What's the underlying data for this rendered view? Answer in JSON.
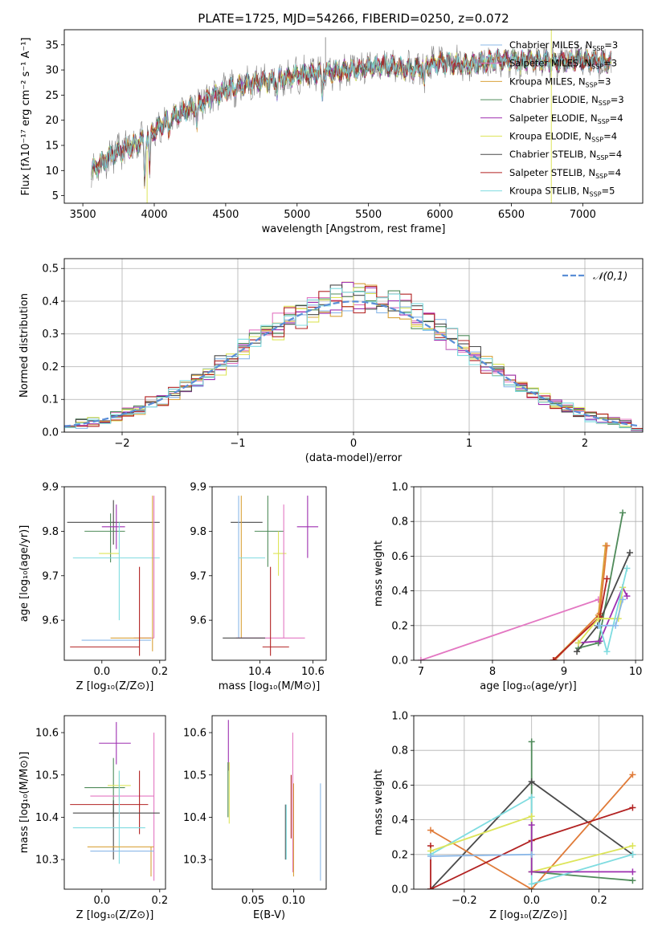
{
  "chart_data": [
    {
      "type": "line",
      "title": "PLATE=1725, MJD=54266, FIBERID=0250, z=0.072",
      "xlabel": "wavelength [Angstrom, rest frame]",
      "ylabel": "Flux [fλ10⁻¹⁷ erg cm⁻² s⁻¹ A⁻¹]",
      "xlim": [
        3370,
        7420
      ],
      "ylim": [
        3.5,
        38
      ],
      "xticks": [
        "3500",
        "4000",
        "4500",
        "5000",
        "5500",
        "6000",
        "6500",
        "7000"
      ],
      "yticks": [
        "5",
        "10",
        "15",
        "20",
        "25",
        "30",
        "35"
      ],
      "spectrum_anchors": {
        "x": [
          3560,
          3700,
          3850,
          3950,
          4050,
          4150,
          4300,
          4500,
          4700,
          4860,
          5000,
          5200,
          5400,
          5600,
          5800,
          6000,
          6200,
          6400,
          6600,
          6800,
          7000,
          7200
        ],
        "y": [
          10,
          13,
          15,
          16.5,
          19,
          21,
          23,
          26,
          27.5,
          28,
          29,
          29.5,
          30,
          31,
          30,
          31.5,
          31,
          32,
          32,
          31.5,
          32,
          31.5
        ]
      },
      "legend": {
        "position": "upper right",
        "items": [
          {
            "label": "Chabrier MILES, N",
            "sub": "SSP",
            "tail": "=3",
            "color": "#8bb8e8"
          },
          {
            "label": "Salpeter MILES, N",
            "sub": "SSP",
            "tail": "=3",
            "color": "#e377c2"
          },
          {
            "label": "Kroupa MILES, N",
            "sub": "SSP",
            "tail": "=3",
            "color": "#d9a33b"
          },
          {
            "label": "Chabrier ELODIE, N",
            "sub": "SSP",
            "tail": "=3",
            "color": "#4f8b5a"
          },
          {
            "label": "Salpeter ELODIE, N",
            "sub": "SSP",
            "tail": "=4",
            "color": "#9d2fb0"
          },
          {
            "label": "Kroupa ELODIE, N",
            "sub": "SSP",
            "tail": "=4",
            "color": "#dde55a"
          },
          {
            "label": "Chabrier STELIB, N",
            "sub": "SSP",
            "tail": "=4",
            "color": "#4a4a4a"
          },
          {
            "label": "Salpeter STELIB, N",
            "sub": "SSP",
            "tail": "=4",
            "color": "#b22222"
          },
          {
            "label": "Kroupa STELIB, N",
            "sub": "SSP",
            "tail": "=5",
            "color": "#7fdce0"
          }
        ]
      }
    },
    {
      "type": "histogram",
      "xlabel": "(data-model)/error",
      "ylabel": "Normed distribution",
      "xlim": [
        -2.5,
        2.5
      ],
      "ylim": [
        0,
        0.53
      ],
      "xticks": [
        "−2",
        "−1",
        "0",
        "1",
        "2"
      ],
      "yticks": [
        "0.0",
        "0.1",
        "0.2",
        "0.3",
        "0.4",
        "0.5"
      ],
      "grid": true,
      "legend_label": "𝒩(0,1)",
      "legend_position": "upper right",
      "curve_color": "#5b8ed6",
      "bin_width": 0.1,
      "bin_start": -2.5,
      "series_colors": [
        "#8bb8e8",
        "#e377c2",
        "#d9a33b",
        "#4f8b5a",
        "#9d2fb0",
        "#dde55a",
        "#4a4a4a",
        "#b22222",
        "#7fdce0"
      ]
    },
    {
      "type": "scatter",
      "xlabel": "Z [log₁₀(Z/Z⊙)]",
      "ylabel": "age  [log₁₀(age/yr)]",
      "xlim": [
        -0.13,
        0.22
      ],
      "ylim": [
        9.51,
        9.9
      ],
      "xticks": [
        "0.0",
        "0.2"
      ],
      "yticks": [
        "9.6",
        "9.7",
        "9.8",
        "9.9"
      ],
      "points": [
        {
          "x": 0.04,
          "y": 9.82,
          "xerr": [
            0.16,
            0.16
          ],
          "yerr": [
            0.05,
            0.05
          ],
          "color": "#4a4a4a"
        },
        {
          "x": 0.03,
          "y": 9.8,
          "xerr": [
            0.09,
            0.05
          ],
          "yerr": [
            0.07,
            0.04
          ],
          "color": "#4f8b5a"
        },
        {
          "x": 0.05,
          "y": 9.81,
          "xerr": [
            0.05,
            0.03
          ],
          "yerr": [
            0.05,
            0.05
          ],
          "color": "#9d2fb0"
        },
        {
          "x": 0.0,
          "y": 9.75,
          "xerr": [
            0.0,
            0.0
          ],
          "yerr": [
            0.0,
            0.0
          ],
          "color": "#dde55a",
          "hx": [
            -0.01,
            0.06
          ]
        },
        {
          "x": 0.04,
          "y": 9.74,
          "xerr": [
            0.14,
            0.16
          ],
          "yerr": [
            0.0,
            0.0
          ],
          "color": "#7fdce0"
        },
        {
          "x": 0.06,
          "y": 9.71,
          "xerr": [
            0.0,
            0.0
          ],
          "yerr": [
            0.11,
            0.11
          ],
          "color": "#7fdce0"
        },
        {
          "x": 0.18,
          "y": 9.56,
          "xerr": [
            0.07,
            0.0
          ],
          "yerr": [
            0.0,
            0.32
          ],
          "color": "#e377c2"
        },
        {
          "x": 0.17,
          "y": 9.56,
          "xerr": [
            0.14,
            0.0
          ],
          "yerr": [
            0.0,
            0.0
          ],
          "color": "#d9a33b"
        },
        {
          "x": 0.175,
          "y": 9.56,
          "xerr": [
            0.0,
            0.0
          ],
          "yerr": [
            0.03,
            0.32
          ],
          "color": "#d9a33b"
        },
        {
          "x": 0.05,
          "y": 9.555,
          "xerr": [
            0.12,
            0.12
          ],
          "yerr": [
            0.0,
            0.0
          ],
          "color": "#8bb8e8"
        },
        {
          "x": 0.03,
          "y": 9.54,
          "xerr": [
            0.14,
            0.1
          ],
          "yerr": [
            0.0,
            0.0
          ],
          "color": "#b22222"
        },
        {
          "x": 0.13,
          "y": 9.62,
          "xerr": [
            0.0,
            0.0
          ],
          "yerr": [
            0.1,
            0.1
          ],
          "color": "#b22222"
        }
      ]
    },
    {
      "type": "scatter",
      "xlabel": "mass [log₁₀(M/M⊙)]",
      "ylabel": "",
      "xlim": [
        10.22,
        10.65
      ],
      "ylim": [
        9.51,
        9.9
      ],
      "xticks": [
        "10.4",
        "10.6"
      ],
      "yticks": [
        "9.6",
        "9.7",
        "9.8",
        "9.9"
      ],
      "points": [
        {
          "x": 10.33,
          "y": 9.82,
          "xerr": [
            0.04,
            0.08
          ],
          "yerr": [
            0.0,
            0.0
          ],
          "color": "#4a4a4a"
        },
        {
          "x": 10.32,
          "y": 9.72,
          "xerr": [
            0.0,
            0.0
          ],
          "yerr": [
            0.16,
            0.16
          ],
          "color": "#8bb8e8"
        },
        {
          "x": 10.33,
          "y": 9.72,
          "xerr": [
            0.0,
            0.0
          ],
          "yerr": [
            0.16,
            0.16
          ],
          "color": "#d9a33b"
        },
        {
          "x": 10.38,
          "y": 9.74,
          "xerr": [
            0.06,
            0.04
          ],
          "yerr": [
            0.0,
            0.0
          ],
          "color": "#7fdce0"
        },
        {
          "x": 10.43,
          "y": 9.8,
          "xerr": [
            0.05,
            0.06
          ],
          "yerr": [
            0.08,
            0.08
          ],
          "color": "#4f8b5a"
        },
        {
          "x": 10.47,
          "y": 9.75,
          "xerr": [
            0.02,
            0.03
          ],
          "yerr": [
            0.05,
            0.05
          ],
          "color": "#dde55a"
        },
        {
          "x": 10.58,
          "y": 9.81,
          "xerr": [
            0.04,
            0.04
          ],
          "yerr": [
            0.07,
            0.07
          ],
          "color": "#9d2fb0"
        },
        {
          "x": 10.49,
          "y": 9.71,
          "xerr": [
            0.0,
            0.0
          ],
          "yerr": [
            0.15,
            0.15
          ],
          "color": "#e377c2"
        },
        {
          "x": 10.47,
          "y": 9.56,
          "xerr": [
            0.16,
            0.1
          ],
          "yerr": [
            0.0,
            0.0
          ],
          "color": "#e377c2"
        },
        {
          "x": 10.43,
          "y": 9.54,
          "xerr": [
            0.02,
            0.08
          ],
          "yerr": [
            0.0,
            0.0
          ],
          "color": "#b22222"
        },
        {
          "x": 10.44,
          "y": 9.62,
          "xerr": [
            0.0,
            0.0
          ],
          "yerr": [
            0.1,
            0.1
          ],
          "color": "#b22222"
        },
        {
          "x": 10.36,
          "y": 9.56,
          "xerr": [
            0.1,
            0.06
          ],
          "yerr": [
            0.0,
            0.0
          ],
          "color": "#4a4a4a"
        }
      ]
    },
    {
      "type": "line",
      "xlabel": "age  [log₁₀(age/yr)]",
      "ylabel": "mass weight",
      "xlim": [
        6.9,
        10.1
      ],
      "ylim": [
        0.0,
        1.0
      ],
      "xticks": [
        "7",
        "8",
        "9",
        "10"
      ],
      "yticks": [
        "0.0",
        "0.2",
        "0.4",
        "0.6",
        "0.8",
        "1.0"
      ],
      "grid": true,
      "series": [
        {
          "color": "#e377c2",
          "x": [
            7.0,
            9.48
          ],
          "y": [
            0.0,
            0.35
          ]
        },
        {
          "color": "#4f8b5a",
          "x": [
            9.2,
            9.48,
            9.82
          ],
          "y": [
            0.07,
            0.1,
            0.85
          ]
        },
        {
          "color": "#d9a33b",
          "x": [
            8.85,
            9.48,
            9.58
          ],
          "y": [
            0.0,
            0.26,
            0.66
          ]
        },
        {
          "color": "#e07b39",
          "x": [
            8.87,
            9.5,
            9.6
          ],
          "y": [
            0.0,
            0.27,
            0.66
          ]
        },
        {
          "color": "#4a4a4a",
          "x": [
            9.18,
            9.47,
            9.92
          ],
          "y": [
            0.05,
            0.2,
            0.62
          ]
        },
        {
          "color": "#b22222",
          "x": [
            8.85,
            9.5,
            9.6
          ],
          "y": [
            0.0,
            0.25,
            0.47
          ]
        },
        {
          "color": "#9d2fb0",
          "x": [
            9.2,
            9.5,
            9.82,
            9.88
          ],
          "y": [
            0.1,
            0.11,
            0.42,
            0.37
          ]
        },
        {
          "color": "#dde55a",
          "x": [
            9.2,
            9.48,
            9.76,
            9.82
          ],
          "y": [
            0.1,
            0.24,
            0.24,
            0.42
          ]
        },
        {
          "color": "#7fdce0",
          "x": [
            9.5,
            9.6,
            9.88
          ],
          "y": [
            0.2,
            0.05,
            0.53
          ]
        },
        {
          "color": "#8bb8e8",
          "x": [
            9.48,
            9.72,
            9.82
          ],
          "y": [
            0.2,
            0.2,
            0.35
          ]
        }
      ]
    },
    {
      "type": "scatter",
      "xlabel": "Z [log₁₀(Z/Z⊙)]",
      "ylabel": "mass [log₁₀(M/M⊙)]",
      "xlim": [
        -0.13,
        0.22
      ],
      "ylim": [
        10.23,
        10.64
      ],
      "xticks": [
        "0.0",
        "0.2"
      ],
      "yticks": [
        "10.3",
        "10.4",
        "10.5",
        "10.6"
      ],
      "points": [
        {
          "x": 0.05,
          "y": 10.575,
          "xerr": [
            0.06,
            0.05
          ],
          "yerr": [
            0.05,
            0.05
          ],
          "color": "#9d2fb0"
        },
        {
          "x": 0.04,
          "y": 10.47,
          "xerr": [
            0.1,
            0.04
          ],
          "yerr": [
            0.07,
            0.07
          ],
          "color": "#4f8b5a"
        },
        {
          "x": 0.06,
          "y": 10.475,
          "xerr": [
            0.04,
            0.04
          ],
          "yerr": [
            0.035,
            0.035
          ],
          "color": "#dde55a"
        },
        {
          "x": 0.1,
          "y": 10.45,
          "xerr": [
            0.14,
            0.08
          ],
          "yerr": [
            0.0,
            0.0
          ],
          "color": "#e377c2"
        },
        {
          "x": 0.18,
          "y": 10.44,
          "xerr": [
            0.0,
            0.0
          ],
          "yerr": [
            0.19,
            0.16
          ],
          "color": "#e377c2"
        },
        {
          "x": 0.03,
          "y": 10.43,
          "xerr": [
            0.14,
            0.13
          ],
          "yerr": [
            0.0,
            0.0
          ],
          "color": "#b22222"
        },
        {
          "x": 0.13,
          "y": 10.43,
          "xerr": [
            0.0,
            0.0
          ],
          "yerr": [
            0.07,
            0.08
          ],
          "color": "#b22222"
        },
        {
          "x": 0.04,
          "y": 10.41,
          "xerr": [
            0.14,
            0.16
          ],
          "yerr": [
            0.11,
            0.03
          ],
          "color": "#4a4a4a"
        },
        {
          "x": 0.04,
          "y": 10.375,
          "xerr": [
            0.14,
            0.11
          ],
          "yerr": [
            0.0,
            0.0
          ],
          "color": "#7fdce0"
        },
        {
          "x": 0.06,
          "y": 10.4,
          "xerr": [
            0.0,
            0.0
          ],
          "yerr": [
            0.11,
            0.11
          ],
          "color": "#7fdce0"
        },
        {
          "x": 0.06,
          "y": 10.33,
          "xerr": [
            0.11,
            0.12
          ],
          "yerr": [
            0.0,
            0.0
          ],
          "color": "#d9a33b"
        },
        {
          "x": 0.17,
          "y": 10.33,
          "xerr": [
            0.0,
            0.0
          ],
          "yerr": [
            0.07,
            0.0
          ],
          "color": "#d9a33b"
        },
        {
          "x": 0.06,
          "y": 10.32,
          "xerr": [
            0.1,
            0.12
          ],
          "yerr": [
            0.0,
            0.0
          ],
          "color": "#8bb8e8"
        }
      ]
    },
    {
      "type": "scatter",
      "xlabel": "E(B-V)",
      "ylabel": "",
      "xlim": [
        0.0,
        0.14
      ],
      "ylim": [
        10.23,
        10.64
      ],
      "xticks": [
        "0.05",
        "0.10"
      ],
      "yticks": [
        "10.3",
        "10.4",
        "10.5",
        "10.6"
      ],
      "points": [
        {
          "x": 0.02,
          "y": 10.56,
          "yerr": [
            0.05,
            0.07
          ],
          "color": "#9d2fb0"
        },
        {
          "x": 0.021,
          "y": 10.47,
          "yerr": [
            0.085,
            0.06
          ],
          "color": "#dde55a"
        },
        {
          "x": 0.0195,
          "y": 10.45,
          "yerr": [
            0.05,
            0.08
          ],
          "color": "#4f8b5a"
        },
        {
          "x": 0.09,
          "y": 10.37,
          "yerr": [
            0.07,
            0.06
          ],
          "color": "#4a4a4a"
        },
        {
          "x": 0.091,
          "y": 10.37,
          "yerr": [
            0.07,
            0.06
          ],
          "color": "#7fdce0"
        },
        {
          "x": 0.097,
          "y": 10.43,
          "yerr": [
            0.08,
            0.07
          ],
          "color": "#b22222"
        },
        {
          "x": 0.099,
          "y": 10.44,
          "yerr": [
            0.17,
            0.16
          ],
          "color": "#e377c2"
        },
        {
          "x": 0.1,
          "y": 10.37,
          "yerr": [
            0.11,
            0.11
          ],
          "color": "#d9a33b"
        },
        {
          "x": 0.133,
          "y": 10.37,
          "yerr": [
            0.12,
            0.11
          ],
          "color": "#8bb8e8"
        }
      ]
    },
    {
      "type": "line",
      "xlabel": "Z [log₁₀(Z/Z⊙)]",
      "ylabel": "mass weight",
      "xlim": [
        -0.35,
        0.33
      ],
      "ylim": [
        0.0,
        1.0
      ],
      "xticks": [
        "−0.2",
        "0.0",
        "0.2"
      ],
      "yticks": [
        "0.0",
        "0.2",
        "0.4",
        "0.6",
        "0.8",
        "1.0"
      ],
      "grid": true,
      "series": [
        {
          "color": "#4f8b5a",
          "x": [
            0.0,
            0.0,
            0.3
          ],
          "y": [
            0.85,
            0.1,
            0.05
          ]
        },
        {
          "color": "#4a4a4a",
          "x": [
            -0.3,
            0.0,
            0.3
          ],
          "y": [
            0.0,
            0.62,
            0.2
          ]
        },
        {
          "color": "#e07b39",
          "x": [
            -0.3,
            0.0,
            0.3
          ],
          "y": [
            0.34,
            0.0,
            0.66
          ]
        },
        {
          "color": "#b22222",
          "x": [
            -0.3,
            -0.3,
            0.0,
            0.3
          ],
          "y": [
            0.25,
            0.0,
            0.28,
            0.47
          ]
        },
        {
          "color": "#7fdce0",
          "x": [
            -0.3,
            0.0,
            0.0,
            0.3
          ],
          "y": [
            0.2,
            0.53,
            0.03,
            0.2
          ]
        },
        {
          "color": "#dde55a",
          "x": [
            -0.3,
            0.0,
            0.0,
            0.3
          ],
          "y": [
            0.22,
            0.42,
            0.1,
            0.25
          ]
        },
        {
          "color": "#9d2fb0",
          "x": [
            0.0,
            0.0,
            0.3
          ],
          "y": [
            0.37,
            0.1,
            0.1
          ]
        },
        {
          "color": "#8bb8e8",
          "x": [
            -0.3,
            0.0
          ],
          "y": [
            0.19,
            0.2
          ]
        }
      ]
    }
  ]
}
